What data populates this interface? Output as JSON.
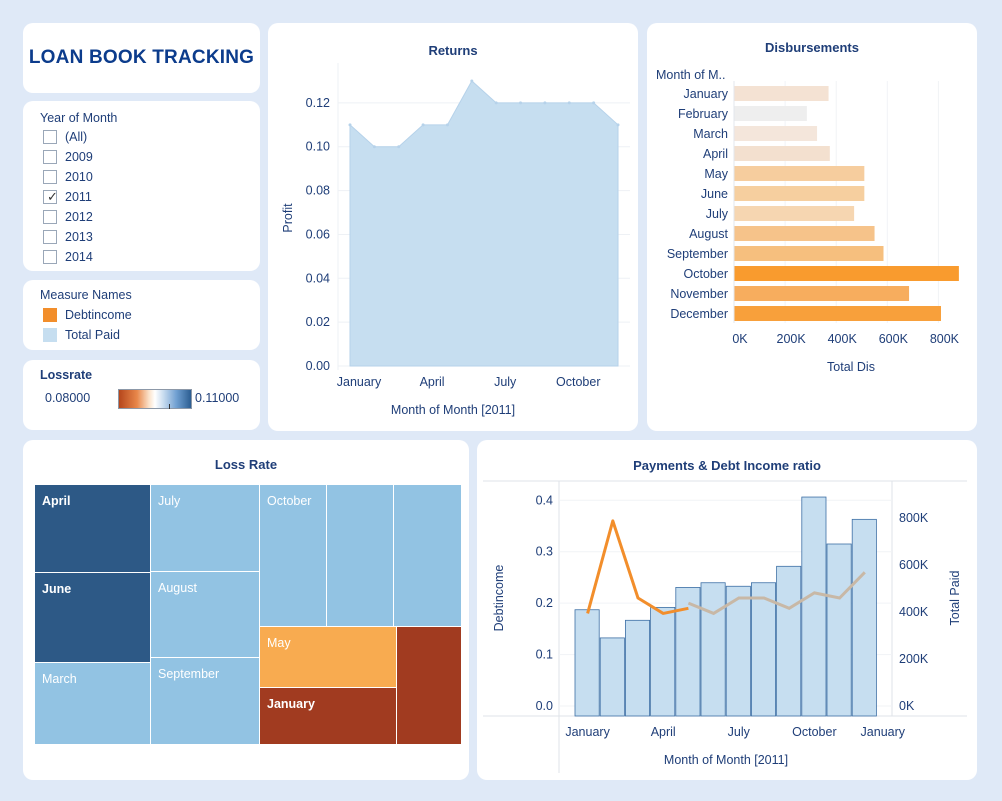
{
  "app": {
    "title": "LOAN BOOK TRACKING"
  },
  "year_filter": {
    "title": "Year of Month",
    "items": [
      {
        "label": "(All)",
        "checked": false
      },
      {
        "label": "2009",
        "checked": false
      },
      {
        "label": "2010",
        "checked": false
      },
      {
        "label": "2011",
        "checked": true
      },
      {
        "label": "2012",
        "checked": false
      },
      {
        "label": "2013",
        "checked": false
      },
      {
        "label": "2014",
        "checked": false
      }
    ]
  },
  "measure_legend": {
    "title": "Measure Names",
    "items": [
      {
        "label": "Debtincome",
        "color": "#f28e2b"
      },
      {
        "label": "Total Paid",
        "color": "#c6def0"
      }
    ]
  },
  "lossrate_legend": {
    "title": "Lossrate",
    "min": "0.08000",
    "max": "0.11000"
  },
  "returns": {
    "title": "Returns"
  },
  "disbursements": {
    "title": "Disbursements"
  },
  "loss_rate": {
    "title": "Loss Rate",
    "cells": [
      {
        "label": "April",
        "color": "#2d5986"
      },
      {
        "label": "June",
        "color": "#2d5986"
      },
      {
        "label": "March",
        "color": "#92c3e3"
      },
      {
        "label": "July",
        "color": "#92c3e3"
      },
      {
        "label": "August",
        "color": "#92c3e3"
      },
      {
        "label": "September",
        "color": "#92c3e3"
      },
      {
        "label": "October",
        "color": "#92c3e3"
      },
      {
        "label": "",
        "color": "#92c3e3"
      },
      {
        "label": "",
        "color": "#92c3e3"
      },
      {
        "label": "May",
        "color": "#f8ab50"
      },
      {
        "label": "January",
        "color": "#a13b20"
      },
      {
        "label": "",
        "color": "#a13b20"
      }
    ]
  },
  "payments": {
    "title": "Payments & Debt Income ratio"
  },
  "chart_data": [
    {
      "type": "area",
      "title": "Returns",
      "xlabel": "Month of Month [2011]",
      "ylabel": "Profit",
      "x": [
        "January",
        "February",
        "March",
        "April",
        "May",
        "June",
        "July",
        "August",
        "September",
        "October",
        "November",
        "December"
      ],
      "values": [
        0.11,
        0.1,
        0.1,
        0.11,
        0.11,
        0.13,
        0.12,
        0.12,
        0.12,
        0.12,
        0.12,
        0.11
      ],
      "x_tick_labels": [
        "January",
        "April",
        "July",
        "October"
      ],
      "y_ticks": [
        "0.00",
        "0.02",
        "0.04",
        "0.06",
        "0.08",
        "0.10",
        "0.12"
      ],
      "ylim": [
        0,
        0.135
      ],
      "color": "#c6def0"
    },
    {
      "type": "bar",
      "orientation": "horizontal",
      "title": "Disbursements",
      "ylabel": "Month of M..",
      "xlabel": "Total Dis",
      "categories": [
        "January",
        "February",
        "March",
        "April",
        "May",
        "June",
        "July",
        "August",
        "September",
        "October",
        "November",
        "December"
      ],
      "values": [
        370000,
        285000,
        325000,
        375000,
        510000,
        510000,
        470000,
        550000,
        585000,
        880000,
        685000,
        810000
      ],
      "colors": [
        "#f4e2d3",
        "#eeeeee",
        "#f4e6db",
        "#f3e0cf",
        "#f6cd9e",
        "#f6cf9f",
        "#f6d6b1",
        "#f6c38a",
        "#f6bf7e",
        "#f99b2e",
        "#f7ad5e",
        "#f8a03b"
      ],
      "x_ticks": [
        "0K",
        "200K",
        "400K",
        "600K",
        "800K"
      ],
      "xlim": [
        0,
        900000
      ]
    },
    {
      "type": "treemap",
      "title": "Loss Rate",
      "labels": [
        "April",
        "June",
        "March",
        "July",
        "August",
        "September",
        "October",
        "May",
        "January"
      ]
    },
    {
      "type": "bar+line",
      "title": "Payments & Debt Income ratio",
      "xlabel": "Month of Month [2011]",
      "categories": [
        "January",
        "February",
        "March",
        "April",
        "May",
        "June",
        "July",
        "August",
        "September",
        "October",
        "November",
        "December"
      ],
      "x_tick_labels": [
        "January",
        "April",
        "July",
        "October",
        "January"
      ],
      "series": [
        {
          "name": "Total Paid",
          "type": "bar",
          "axis": "right",
          "color": "#c6def0",
          "values": [
            410000,
            290000,
            365000,
            420000,
            505000,
            525000,
            510000,
            525000,
            595000,
            890000,
            690000,
            795000
          ]
        },
        {
          "name": "Debtincome",
          "type": "line",
          "axis": "left",
          "color": "#f28e2b",
          "values": [
            0.18,
            0.36,
            0.21,
            0.18,
            0.19,
            0.19,
            0.22,
            0.21,
            0.19,
            0.22,
            0.21,
            0.26
          ]
        },
        {
          "type": "line",
          "axis": "left",
          "color": "#c8b8a6",
          "values": [
            null,
            null,
            null,
            null,
            0.2,
            0.18,
            0.21,
            0.21,
            0.19,
            0.22,
            0.21,
            0.26
          ]
        }
      ],
      "y_left": {
        "label": "Debtincome",
        "ticks": [
          "0.0",
          "0.1",
          "0.2",
          "0.3",
          "0.4"
        ],
        "range": [
          0,
          0.42
        ]
      },
      "y_right": {
        "label": "Total Paid",
        "ticks": [
          "0K",
          "200K",
          "400K",
          "600K",
          "800K"
        ],
        "range": [
          0,
          920000
        ]
      }
    }
  ]
}
